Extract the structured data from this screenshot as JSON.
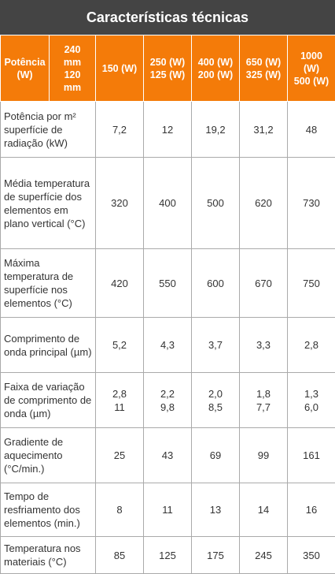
{
  "title": "Características técnicas",
  "table": {
    "header": [
      [
        "Potência",
        "(W)"
      ],
      [
        "240",
        "mm",
        "120",
        "mm"
      ],
      [
        "150 (W)"
      ],
      [
        "250 (W)",
        "125 (W)"
      ],
      [
        "400 (W)",
        "200 (W)"
      ],
      [
        "650 (W)",
        "325 (W)"
      ],
      [
        "1000",
        "(W)",
        "500 (W)"
      ]
    ],
    "rows": [
      [
        "Potência por m² superfície de radiação (kW)",
        [
          "7,2"
        ],
        [
          "12"
        ],
        [
          "19,2"
        ],
        [
          "31,2"
        ],
        [
          "48"
        ]
      ],
      [
        "Média temperatura de superfície dos elementos em plano vertical (°C)",
        [
          "320"
        ],
        [
          "400"
        ],
        [
          "500"
        ],
        [
          "620"
        ],
        [
          "730"
        ]
      ],
      [
        "Máxima temperatura de superfície nos elementos (°C)",
        [
          "420"
        ],
        [
          "550"
        ],
        [
          "600"
        ],
        [
          "670"
        ],
        [
          "750"
        ]
      ],
      [
        "Comprimento de onda principal (µm)",
        [
          "5,2"
        ],
        [
          "4,3"
        ],
        [
          "3,7"
        ],
        [
          "3,3"
        ],
        [
          "2,8"
        ]
      ],
      [
        "Faixa de variação de comprimento de onda (µm)",
        [
          "2,8",
          "11"
        ],
        [
          "2,2",
          "9,8"
        ],
        [
          "2,0",
          "8,5"
        ],
        [
          "1,8",
          "7,7"
        ],
        [
          "1,3",
          "6,0"
        ]
      ],
      [
        "Gradiente de aquecimento (°C/min.)",
        [
          "25"
        ],
        [
          "43"
        ],
        [
          "69"
        ],
        [
          "99"
        ],
        [
          "161"
        ]
      ],
      [
        "Tempo de resfriamento dos elementos (min.)",
        [
          "8"
        ],
        [
          "11"
        ],
        [
          "13"
        ],
        [
          "14"
        ],
        [
          "16"
        ]
      ],
      [
        "Temperatura nos materiais (°C)",
        [
          "85"
        ],
        [
          "125"
        ],
        [
          "175"
        ],
        [
          "245"
        ],
        [
          "350"
        ]
      ]
    ]
  }
}
